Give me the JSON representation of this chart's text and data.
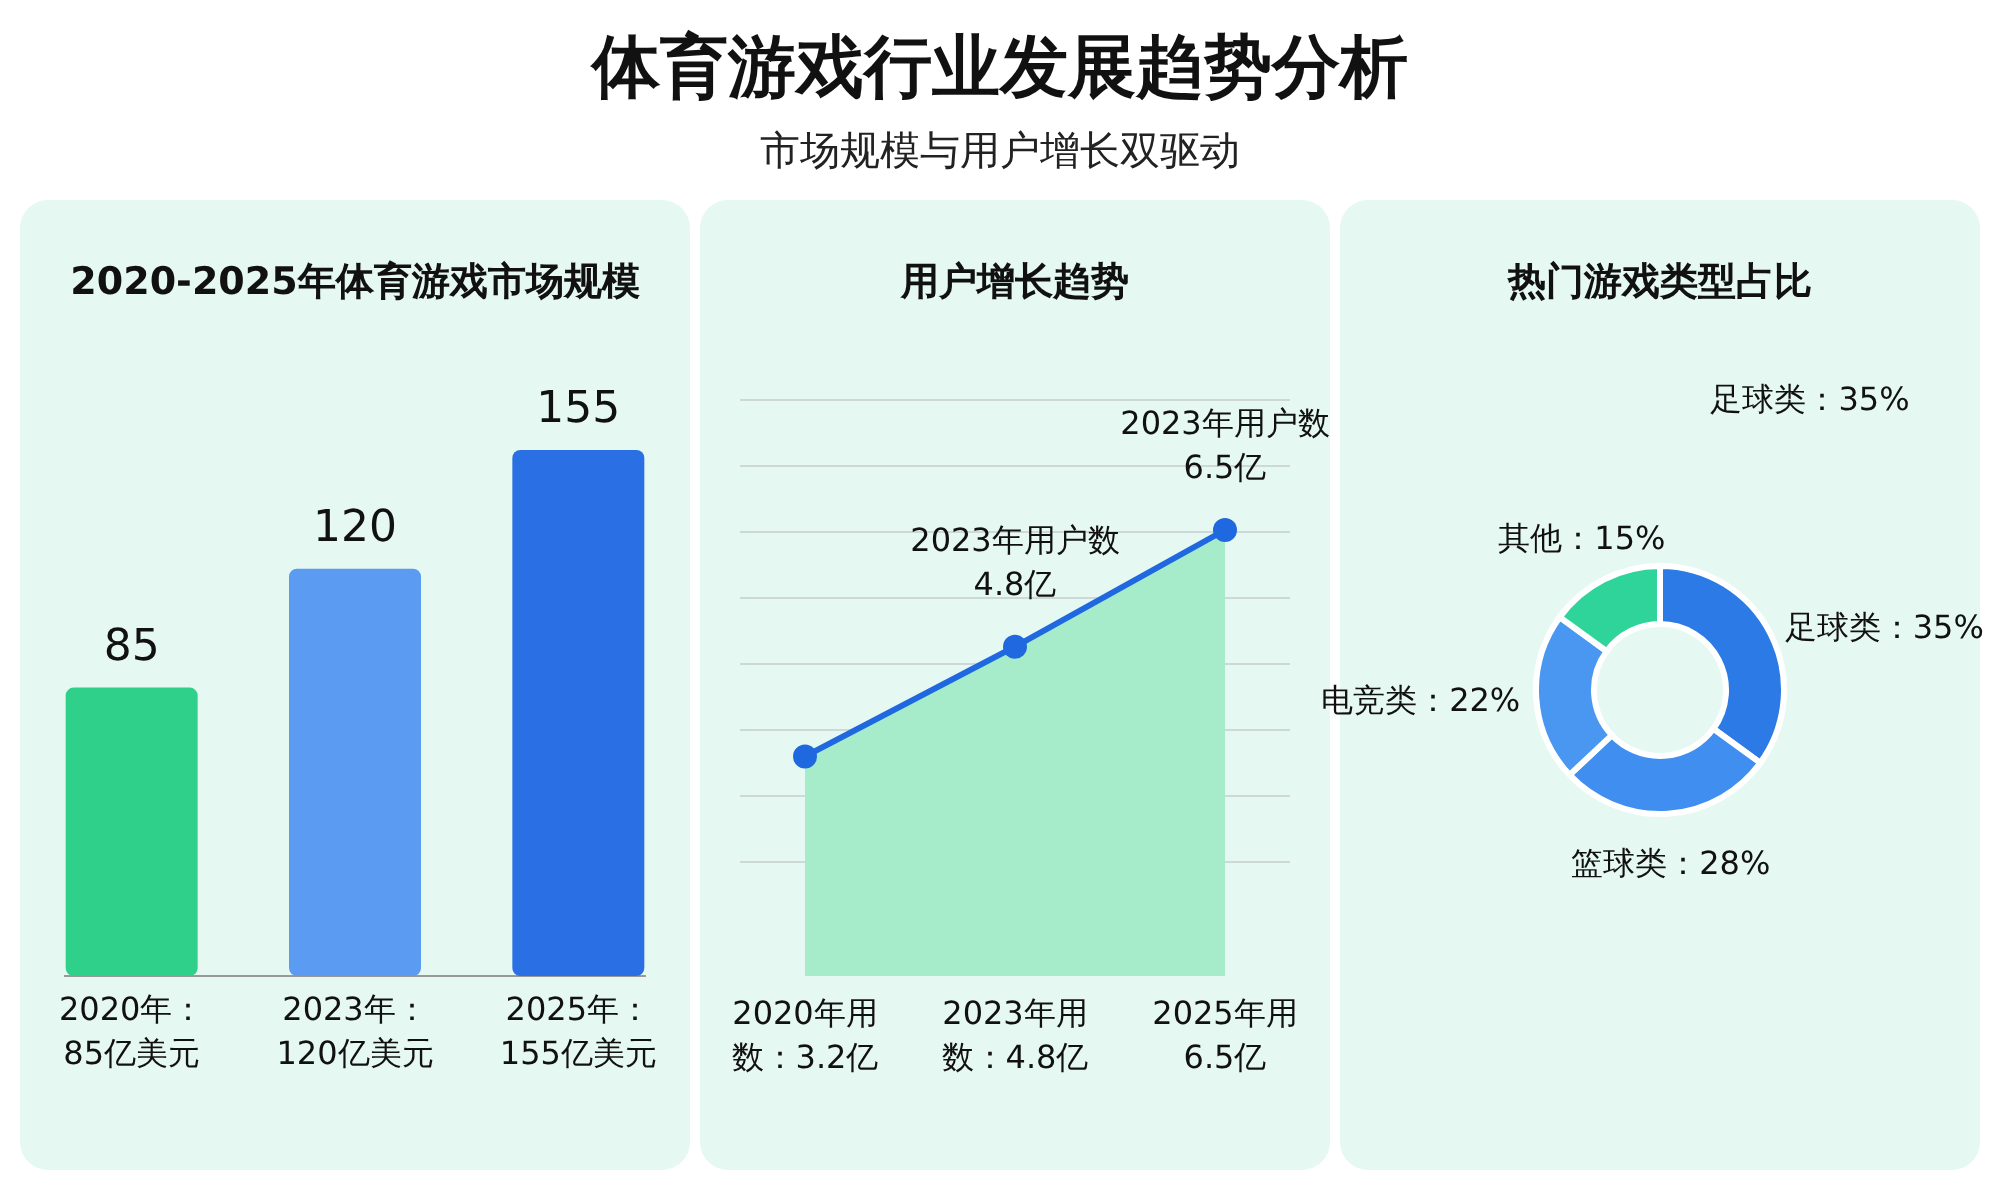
{
  "chart_data": [
    {
      "type": "other",
      "title": "体育游戏行业发展趋势分析",
      "subtitle": "市场规模与用户增长双驱动"
    },
    {
      "type": "bar",
      "title": "2020-2025年体育游戏市场规模",
      "categories": [
        "2020年：\n85亿美元",
        "2023年：\n120亿美元",
        "2025年：\n155亿美元"
      ],
      "values": [
        85,
        120,
        155
      ],
      "colors": [
        "#2fd08a",
        "#5b9cf2",
        "#2a6fe3"
      ],
      "data_labels": true
    },
    {
      "type": "area",
      "title": "用户增长趋势",
      "categories": [
        "2020年用数",
        "2023年用数",
        "2025年用"
      ],
      "values": [
        3.2,
        4.8,
        6.5
      ],
      "value_labels": [
        "：3.2亿",
        "：4.8亿",
        "6.5亿"
      ],
      "color": "#1f68e0",
      "marker": "circle",
      "grid": "y",
      "annotations": [
        {
          "text": "2023年用户数4.8亿",
          "x": "2023年用数",
          "y": 4.8
        },
        {
          "text": "2023年用户数6.5亿",
          "x": "2025年用",
          "y": 6.5
        }
      ]
    },
    {
      "type": "donut",
      "title": "热门游戏类型占比",
      "categories": [
        "足球类：35%",
        "篮球类：28%",
        "电竞类：22%",
        "其他：15%"
      ],
      "values": [
        35,
        28,
        22,
        15
      ],
      "colors": [
        "#2b7ae6",
        "#3f8ef0",
        "#4a97f2",
        "#2fd49a"
      ],
      "annotations": [
        "足球类：35%"
      ]
    }
  ]
}
